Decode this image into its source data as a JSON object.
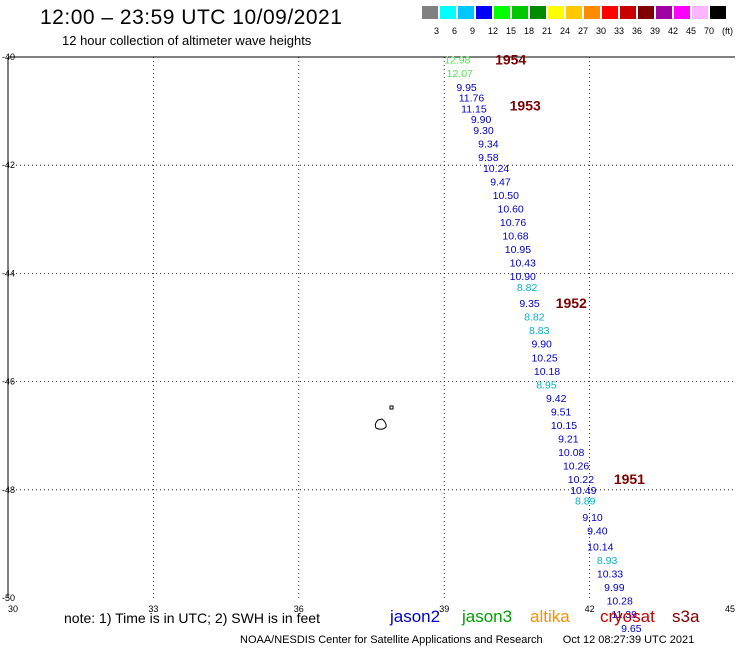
{
  "header": {
    "title": "12:00 – 23:59 UTC 10/09/2021",
    "subtitle": "12 hour collection of altimeter wave heights"
  },
  "color_scale": {
    "colors": [
      "#808080",
      "#00ffff",
      "#00c8ff",
      "#0000ff",
      "#00ff00",
      "#00c800",
      "#008c00",
      "#ffff00",
      "#ffc800",
      "#ff8c00",
      "#ff0000",
      "#c80000",
      "#800000",
      "#a000a0",
      "#ff00ff",
      "#ffb4ff",
      "#000000"
    ],
    "labels": [
      "3",
      "6",
      "9",
      "12",
      "15",
      "18",
      "21",
      "24",
      "27",
      "30",
      "33",
      "36",
      "39",
      "42",
      "45",
      "70",
      "(ft)"
    ]
  },
  "axes": {
    "x_ticks": [
      30,
      33,
      36,
      39,
      42,
      45
    ],
    "y_ticks": [
      -40,
      -42,
      -44,
      -46,
      -48,
      -50
    ],
    "x_tick_labels": [
      "30",
      "33",
      "36",
      "39",
      "42",
      "45"
    ],
    "y_tick_labels": [
      "-40",
      "-42",
      "-44",
      "-46",
      "-48",
      "-50"
    ]
  },
  "colors": {
    "jason2": "#0000c8",
    "jason3": "#00a000",
    "altika": "#ff8c00",
    "cryosat": "#c80000",
    "s3a": "#800000",
    "cyan": "#00b4c8",
    "lightgreen": "#50e650",
    "pass": "#800000"
  },
  "pass_labels": [
    {
      "text": "1954",
      "lon": 40.05,
      "lat": -40.05
    },
    {
      "text": "1953",
      "lon": 40.35,
      "lat": -40.9
    },
    {
      "text": "1952",
      "lon": 41.3,
      "lat": -44.55
    },
    {
      "text": "1951",
      "lon": 42.5,
      "lat": -47.8
    }
  ],
  "observations": [
    {
      "v": "12.98",
      "lon": 39.0,
      "lat": -40.05,
      "c": "lightgreen"
    },
    {
      "v": "12.07",
      "lon": 39.05,
      "lat": -40.3,
      "c": "lightgreen"
    },
    {
      "v": "9.95",
      "lon": 39.25,
      "lat": -40.55,
      "c": "jason2"
    },
    {
      "v": "11.76",
      "lon": 39.3,
      "lat": -40.75,
      "c": "jason2"
    },
    {
      "v": "11.15",
      "lon": 39.35,
      "lat": -40.95,
      "c": "jason2"
    },
    {
      "v": "9.90",
      "lon": 39.55,
      "lat": -41.15,
      "c": "jason2"
    },
    {
      "v": "9.30",
      "lon": 39.6,
      "lat": -41.35,
      "c": "jason2"
    },
    {
      "v": "9.34",
      "lon": 39.7,
      "lat": -41.6,
      "c": "jason2"
    },
    {
      "v": "9.58",
      "lon": 39.7,
      "lat": -41.85,
      "c": "jason2"
    },
    {
      "v": "10.24",
      "lon": 39.8,
      "lat": -42.05,
      "c": "jason2"
    },
    {
      "v": "9.47",
      "lon": 39.95,
      "lat": -42.3,
      "c": "jason2"
    },
    {
      "v": "10.50",
      "lon": 40.0,
      "lat": -42.55,
      "c": "jason2"
    },
    {
      "v": "10.60",
      "lon": 40.1,
      "lat": -42.8,
      "c": "jason2"
    },
    {
      "v": "10.76",
      "lon": 40.15,
      "lat": -43.05,
      "c": "jason2"
    },
    {
      "v": "10.68",
      "lon": 40.2,
      "lat": -43.3,
      "c": "jason2"
    },
    {
      "v": "10.95",
      "lon": 40.25,
      "lat": -43.55,
      "c": "jason2"
    },
    {
      "v": "10.43",
      "lon": 40.35,
      "lat": -43.8,
      "c": "jason2"
    },
    {
      "v": "10.90",
      "lon": 40.35,
      "lat": -44.05,
      "c": "jason2"
    },
    {
      "v": "8.82",
      "lon": 40.5,
      "lat": -44.25,
      "c": "cyan"
    },
    {
      "v": "9.35",
      "lon": 40.55,
      "lat": -44.55,
      "c": "jason2"
    },
    {
      "v": "8.82",
      "lon": 40.65,
      "lat": -44.8,
      "c": "cyan"
    },
    {
      "v": "8.83",
      "lon": 40.75,
      "lat": -45.05,
      "c": "cyan"
    },
    {
      "v": "9.90",
      "lon": 40.8,
      "lat": -45.3,
      "c": "jason2"
    },
    {
      "v": "10.25",
      "lon": 40.8,
      "lat": -45.55,
      "c": "jason2"
    },
    {
      "v": "10.18",
      "lon": 40.85,
      "lat": -45.8,
      "c": "jason2"
    },
    {
      "v": "8.95",
      "lon": 40.9,
      "lat": -46.05,
      "c": "cyan"
    },
    {
      "v": "9.42",
      "lon": 41.1,
      "lat": -46.3,
      "c": "jason2"
    },
    {
      "v": "9.51",
      "lon": 41.2,
      "lat": -46.55,
      "c": "jason2"
    },
    {
      "v": "10.15",
      "lon": 41.2,
      "lat": -46.8,
      "c": "jason2"
    },
    {
      "v": "9.21",
      "lon": 41.35,
      "lat": -47.05,
      "c": "jason2"
    },
    {
      "v": "10.08",
      "lon": 41.35,
      "lat": -47.3,
      "c": "jason2"
    },
    {
      "v": "10.26",
      "lon": 41.45,
      "lat": -47.55,
      "c": "jason2"
    },
    {
      "v": "10.22",
      "lon": 41.55,
      "lat": -47.8,
      "c": "jason2"
    },
    {
      "v": "10.49",
      "lon": 41.6,
      "lat": -48.0,
      "c": "jason2"
    },
    {
      "v": "8.89",
      "lon": 41.7,
      "lat": -48.2,
      "c": "cyan"
    },
    {
      "v": "9.10",
      "lon": 41.85,
      "lat": -48.5,
      "c": "jason2"
    },
    {
      "v": "9.40",
      "lon": 41.95,
      "lat": -48.75,
      "c": "jason2"
    },
    {
      "v": "10.14",
      "lon": 41.95,
      "lat": -49.05,
      "c": "jason2"
    },
    {
      "v": "8.93",
      "lon": 42.15,
      "lat": -49.3,
      "c": "cyan"
    },
    {
      "v": "10.33",
      "lon": 42.15,
      "lat": -49.55,
      "c": "jason2"
    },
    {
      "v": "9.99",
      "lon": 42.3,
      "lat": -49.8,
      "c": "jason2"
    },
    {
      "v": "10.28",
      "lon": 42.35,
      "lat": -50.05,
      "c": "jason2"
    },
    {
      "v": "11.39",
      "lon": 42.45,
      "lat": -50.3,
      "c": "jason2"
    },
    {
      "v": "9.65",
      "lon": 42.65,
      "lat": -50.55,
      "c": "jason2"
    }
  ],
  "legend": {
    "note": "note:  1) Time is in UTC;  2) SWH is in feet",
    "satellites": [
      {
        "name": "jason2",
        "color": "#0000c8"
      },
      {
        "name": "jason3",
        "color": "#00a000"
      },
      {
        "name": "altika",
        "color": "#ff8c00"
      },
      {
        "name": "cryosat",
        "color": "#c80000"
      },
      {
        "name": "s3a",
        "color": "#800000"
      }
    ]
  },
  "footer": {
    "credit": "NOAA/NESDIS Center for Satellite Applications and Research",
    "timestamp": "Oct 12 08:27:39 UTC 2021"
  }
}
